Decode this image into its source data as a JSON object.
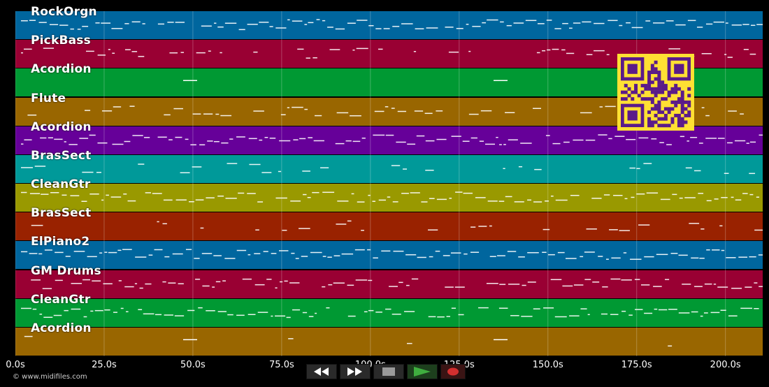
{
  "tracks": [
    {
      "name": "RockOrgn",
      "color": "#00669e"
    },
    {
      "name": "PickBass",
      "color": "#990033"
    },
    {
      "name": "Acordion",
      "color": "#009933"
    },
    {
      "name": "Flute",
      "color": "#996600"
    },
    {
      "name": "Acordion",
      "color": "#660099"
    },
    {
      "name": "BrasSect",
      "color": "#009999"
    },
    {
      "name": "CleanGtr",
      "color": "#999900"
    },
    {
      "name": "BrasSect",
      "color": "#992200"
    },
    {
      "name": "ElPiano2",
      "color": "#00669e"
    },
    {
      "name": "GM Drums",
      "color": "#990033"
    },
    {
      "name": "CleanGtr",
      "color": "#009933"
    },
    {
      "name": "Acordion",
      "color": "#996600"
    }
  ],
  "time_axis": {
    "ticks": [
      "0.0s",
      "25.0s",
      "50.0s",
      "75.0s",
      "100.0s",
      "125.0s",
      "150.0s",
      "175.0s",
      "200.0s"
    ],
    "tick_values": [
      0,
      25,
      50,
      75,
      100,
      125,
      150,
      175,
      200
    ],
    "max_seconds": 210.5
  },
  "footer": {
    "copyright": "© www.midifiles.com"
  },
  "transport": {
    "rewind_icon": "rewind-icon",
    "fast_forward_icon": "fast-forward-icon",
    "stop_icon": "stop-icon",
    "play_icon": "play-icon",
    "record_icon": "record-icon"
  },
  "colors": {
    "background": "#000000",
    "notes": "#ffffff",
    "qr_yellow": "#ffe033",
    "qr_purple": "#5a1a8a"
  }
}
